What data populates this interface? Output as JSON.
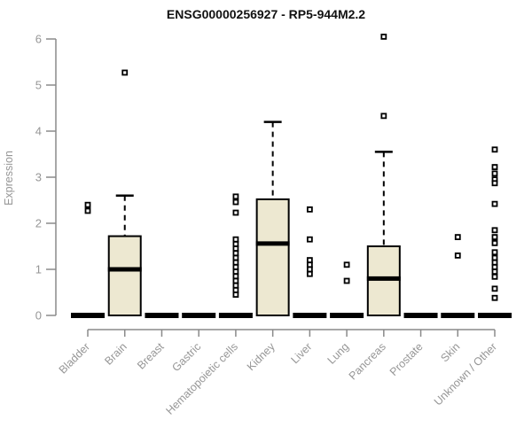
{
  "chart_data": {
    "type": "boxplot",
    "title": "ENSG00000256927 - RP5-944M2.2",
    "ylabel": "Expression",
    "xlabel": "",
    "ylim": [
      0,
      6
    ],
    "yticks": [
      0,
      1,
      2,
      3,
      4,
      5,
      6
    ],
    "grid": false,
    "legend": "none",
    "categories": [
      "Bladder",
      "Brain",
      "Breast",
      "Gastric",
      "Hematopoietic cells",
      "Kidney",
      "Liver",
      "Lung",
      "Pancreas",
      "Prostate",
      "Skin",
      "Unknown / Other"
    ],
    "series": [
      {
        "name": "Bladder",
        "q1": 0,
        "median": 0,
        "q3": 0,
        "whisker_low": 0,
        "whisker_high": 0,
        "outliers": [
          2.4,
          2.27
        ]
      },
      {
        "name": "Brain",
        "q1": 0,
        "median": 1.0,
        "q3": 1.72,
        "whisker_low": 0,
        "whisker_high": 2.6,
        "outliers": [
          5.27
        ]
      },
      {
        "name": "Breast",
        "q1": 0,
        "median": 0,
        "q3": 0,
        "whisker_low": 0,
        "whisker_high": 0,
        "outliers": []
      },
      {
        "name": "Gastric",
        "q1": 0,
        "median": 0,
        "q3": 0,
        "whisker_low": 0,
        "whisker_high": 0,
        "outliers": []
      },
      {
        "name": "Hematopoietic cells",
        "q1": 0,
        "median": 0,
        "q3": 0,
        "whisker_low": 0,
        "whisker_high": 0,
        "outliers": [
          2.58,
          2.46,
          2.23,
          1.65,
          1.55,
          1.45,
          1.35,
          1.25,
          1.15,
          1.05,
          0.95,
          0.85,
          0.75,
          0.65,
          0.55,
          0.45
        ]
      },
      {
        "name": "Kidney",
        "q1": 0,
        "median": 1.56,
        "q3": 2.52,
        "whisker_low": 0,
        "whisker_high": 4.2,
        "outliers": []
      },
      {
        "name": "Liver",
        "q1": 0,
        "median": 0,
        "q3": 0,
        "whisker_low": 0,
        "whisker_high": 0,
        "outliers": [
          2.3,
          1.65,
          1.2,
          1.1,
          1.0,
          0.9
        ]
      },
      {
        "name": "Lung",
        "q1": 0,
        "median": 0,
        "q3": 0,
        "whisker_low": 0,
        "whisker_high": 0,
        "outliers": [
          1.1,
          0.75
        ]
      },
      {
        "name": "Pancreas",
        "q1": 0,
        "median": 0.8,
        "q3": 1.5,
        "whisker_low": 0,
        "whisker_high": 3.55,
        "outliers": [
          6.05,
          4.33
        ]
      },
      {
        "name": "Prostate",
        "q1": 0,
        "median": 0,
        "q3": 0,
        "whisker_low": 0,
        "whisker_high": 0,
        "outliers": []
      },
      {
        "name": "Skin",
        "q1": 0,
        "median": 0,
        "q3": 0,
        "whisker_low": 0,
        "whisker_high": 0,
        "outliers": [
          1.7,
          1.3
        ]
      },
      {
        "name": "Unknown / Other",
        "q1": 0,
        "median": 0,
        "q3": 0,
        "whisker_low": 0,
        "whisker_high": 0,
        "outliers": [
          3.6,
          3.22,
          3.08,
          2.95,
          2.87,
          2.42,
          1.85,
          1.7,
          1.57,
          1.37,
          1.25,
          1.15,
          1.05,
          0.95,
          0.84,
          0.58,
          0.38
        ]
      }
    ]
  },
  "colors": {
    "box_fill": "#ede8d1",
    "box_stroke": "#000000",
    "median": "#000000",
    "whisker": "#000000",
    "outlier_stroke": "#000000",
    "outlier_fill": "#ffffff",
    "axis_line": "#8a8a8a",
    "tick_text": "#969696",
    "title_text": "#111111"
  }
}
